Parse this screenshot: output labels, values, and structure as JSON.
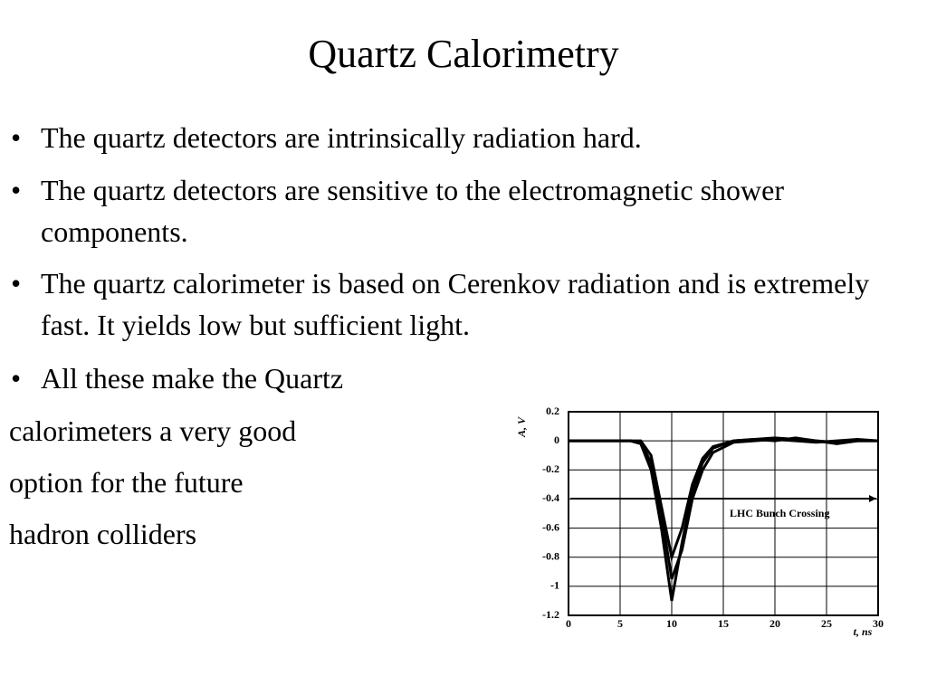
{
  "header": {
    "title": "Quartz Calorimetry"
  },
  "bullets": [
    "The quartz detectors are intrinsically radiation hard.",
    "The quartz detectors are sensitive to the electromagnetic shower components.",
    "The quartz calorimeter is based on Cerenkov radiation and is extremely fast. It yields low but sufficient light.",
    "All these make the Quartz"
  ],
  "continuation": [
    "calorimeters a very good",
    "option for the future",
    "hadron colliders"
  ],
  "chart_data": {
    "type": "line",
    "y_label": "A, V",
    "x_label": "t, ns",
    "annotation": "LHC Bunch Crossing",
    "x": [
      0,
      2,
      4,
      6,
      7,
      8,
      9,
      10,
      11,
      12,
      13,
      14,
      16,
      18,
      20,
      22,
      24,
      26,
      28,
      30
    ],
    "series": [
      {
        "color": "#000000",
        "values": [
          0,
          0,
          0,
          0,
          -0.02,
          -0.2,
          -0.6,
          -1.1,
          -0.7,
          -0.35,
          -0.15,
          -0.05,
          0,
          0.01,
          0.02,
          0.01,
          0,
          -0.02,
          0,
          0
        ]
      },
      {
        "color": "#000000",
        "values": [
          0,
          0,
          0,
          0,
          -0.01,
          -0.15,
          -0.5,
          -0.95,
          -0.75,
          -0.4,
          -0.2,
          -0.08,
          -0.01,
          0,
          0.01,
          0,
          -0.01,
          0,
          0.01,
          0
        ]
      },
      {
        "color": "#000000",
        "values": [
          0,
          0,
          0,
          0,
          0,
          -0.1,
          -0.45,
          -0.8,
          -0.6,
          -0.3,
          -0.12,
          -0.04,
          0,
          0.01,
          0,
          0.02,
          0,
          -0.01,
          0,
          0
        ]
      }
    ],
    "xlim": [
      0,
      30
    ],
    "ylim": [
      -1.2,
      0.2
    ],
    "xticks": [
      0,
      5,
      10,
      15,
      20,
      25,
      30
    ],
    "yticks": [
      0.2,
      0,
      -0.2,
      -0.4,
      -0.6,
      -0.8,
      -1,
      -1.2
    ],
    "grid": true
  }
}
